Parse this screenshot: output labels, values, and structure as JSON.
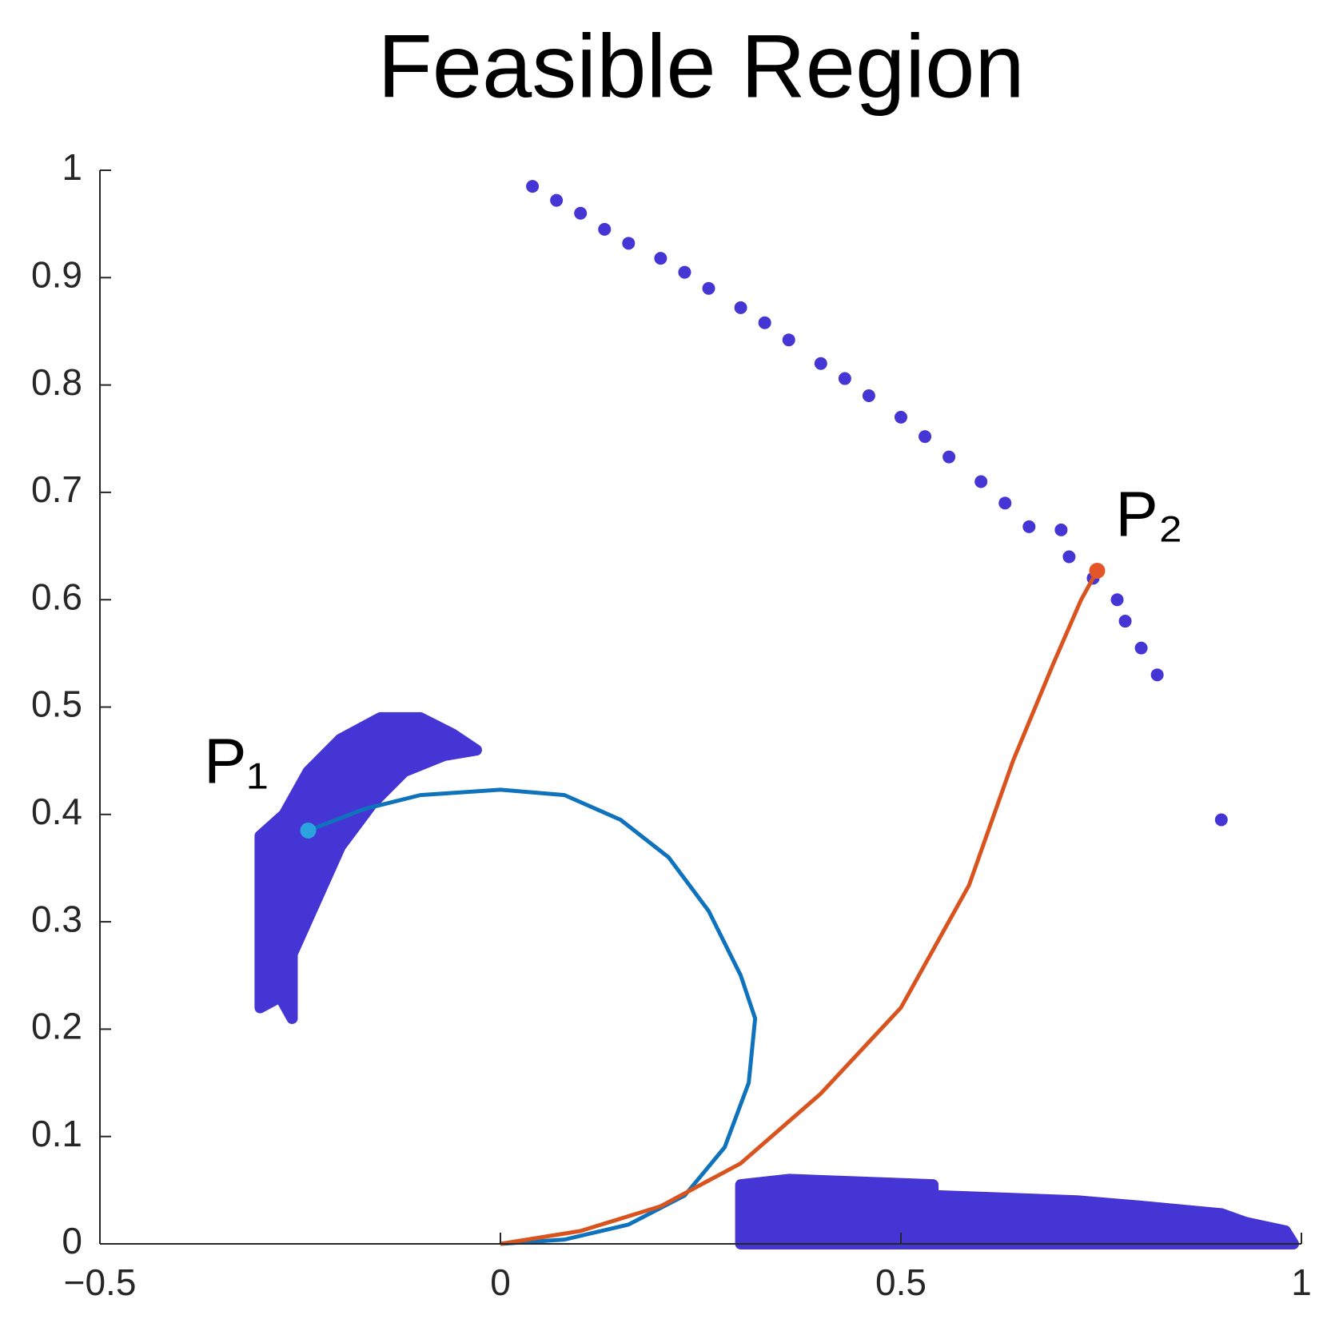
{
  "chart_data": {
    "type": "scatter",
    "title": "Feasible Region",
    "xlim": [
      -0.5,
      1
    ],
    "ylim": [
      0,
      1
    ],
    "xticks": [
      {
        "value": -0.5,
        "label": "−0.5"
      },
      0,
      0.5,
      1
    ],
    "yticks": [
      0,
      0.1,
      0.2,
      0.3,
      0.4,
      0.5,
      0.6,
      0.7,
      0.8,
      0.9,
      1
    ],
    "series": [
      {
        "type": "region",
        "color": "#4535d4",
        "x": [
          -0.3,
          -0.27,
          -0.24,
          -0.2,
          -0.15,
          -0.1,
          -0.06,
          -0.03,
          -0.07,
          -0.12,
          -0.16,
          -0.2,
          -0.23,
          -0.26,
          -0.26,
          -0.275,
          -0.3
        ],
        "y": [
          0.38,
          0.4,
          0.44,
          0.47,
          0.49,
          0.49,
          0.475,
          0.46,
          0.455,
          0.44,
          0.41,
          0.37,
          0.32,
          0.27,
          0.21,
          0.23,
          0.22
        ]
      },
      {
        "type": "region",
        "color": "#4535d4",
        "x": [
          0.3,
          0.3,
          0.36,
          0.54,
          0.54,
          0.72,
          0.8,
          0.9,
          0.93,
          0.98,
          0.99
        ],
        "y": [
          0,
          0.055,
          0.06,
          0.055,
          0.045,
          0.04,
          0.035,
          0.028,
          0.02,
          0.012,
          0
        ]
      },
      {
        "type": "scatter",
        "color": "#4535d4",
        "x": [
          0.04,
          0.07,
          0.1,
          0.13,
          0.16,
          0.2,
          0.23,
          0.26,
          0.3,
          0.33,
          0.36,
          0.4,
          0.43,
          0.46,
          0.5,
          0.53,
          0.56,
          0.6,
          0.63,
          0.66,
          0.7,
          0.71,
          0.74,
          0.77,
          0.78,
          0.8,
          0.82,
          0.9
        ],
        "y": [
          0.985,
          0.972,
          0.96,
          0.945,
          0.932,
          0.918,
          0.905,
          0.89,
          0.872,
          0.858,
          0.842,
          0.82,
          0.806,
          0.79,
          0.77,
          0.752,
          0.733,
          0.71,
          0.69,
          0.668,
          0.665,
          0.64,
          0.62,
          0.6,
          0.58,
          0.555,
          0.53,
          0.395
        ]
      },
      {
        "type": "line",
        "color": "#0f72bd",
        "x": [
          -0.24,
          -0.17,
          -0.1,
          0,
          0.08,
          0.15,
          0.21,
          0.26,
          0.3,
          0.318,
          0.31,
          0.28,
          0.23,
          0.16,
          0.08,
          0
        ],
        "y": [
          0.385,
          0.405,
          0.418,
          0.423,
          0.418,
          0.395,
          0.36,
          0.31,
          0.25,
          0.21,
          0.15,
          0.09,
          0.045,
          0.018,
          0.004,
          0
        ]
      },
      {
        "type": "line",
        "color": "#d9531e",
        "x": [
          0,
          0.1,
          0.2,
          0.3,
          0.4,
          0.5,
          0.585,
          0.64,
          0.69,
          0.725,
          0.745
        ],
        "y": [
          0,
          0.012,
          0.035,
          0.075,
          0.14,
          0.22,
          0.334,
          0.45,
          0.54,
          0.6,
          0.627
        ]
      },
      {
        "type": "point",
        "color": "#2aa3df",
        "x": [
          -0.24
        ],
        "y": [
          0.385
        ]
      },
      {
        "type": "point",
        "color": "#e5552a",
        "x": [
          0.745
        ],
        "y": [
          0.627
        ]
      }
    ],
    "annotations": [
      {
        "text": "P₁",
        "x": -0.33,
        "y": 0.445
      },
      {
        "text": "P₂",
        "x": 0.81,
        "y": 0.675
      }
    ]
  }
}
